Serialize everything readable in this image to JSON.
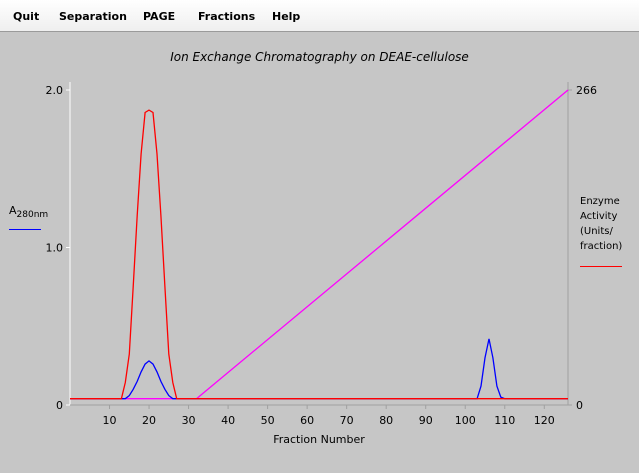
{
  "menu": {
    "quit": "Quit",
    "separation": "Separation",
    "page": "PAGE",
    "fractions": "Fractions",
    "help": "Help"
  },
  "chart_data": {
    "type": "line",
    "title": "Ion Exchange Chromatography on DEAE-cellulose",
    "xlabel": "Fraction Number",
    "xlim": [
      0,
      126
    ],
    "x_ticks": [
      10,
      20,
      30,
      40,
      50,
      60,
      70,
      80,
      90,
      100,
      110,
      120
    ],
    "y_left": {
      "label_main": "A",
      "label_sub": "280nm",
      "ylim": [
        0,
        2.0
      ],
      "ticks": [
        "0",
        "1.0",
        "2.0"
      ],
      "color": "#0000ff"
    },
    "y_right": {
      "label_lines": [
        "Enzyme",
        "Activity",
        "(Units/",
        "fraction)"
      ],
      "ylim": [
        0,
        266
      ],
      "ticks": [
        "0",
        "266"
      ],
      "color": "#ff0000"
    },
    "series": [
      {
        "axis": "left",
        "color": "#0000ff",
        "x": [
          0,
          14,
          15,
          16,
          17,
          18,
          19,
          20,
          21,
          22,
          23,
          24,
          25,
          26,
          27,
          103,
          104,
          105,
          106,
          107,
          108,
          109,
          110,
          126
        ],
        "y": [
          0.04,
          0.04,
          0.06,
          0.1,
          0.15,
          0.21,
          0.26,
          0.28,
          0.26,
          0.21,
          0.15,
          0.1,
          0.06,
          0.04,
          0.04,
          0.04,
          0.12,
          0.3,
          0.42,
          0.3,
          0.12,
          0.05,
          0.04,
          0.04
        ]
      },
      {
        "axis": "right",
        "color": "#ff0000",
        "x": [
          0,
          13,
          14,
          15,
          16,
          17,
          18,
          19,
          20,
          21,
          22,
          23,
          24,
          25,
          26,
          27,
          126
        ],
        "y": [
          5.3,
          5.3,
          19,
          43,
          100,
          160,
          212,
          247,
          249,
          247,
          212,
          160,
          100,
          43,
          19,
          5.3,
          5.3
        ]
      },
      {
        "axis": "right",
        "color": "#ff00ff",
        "x": [
          0,
          32,
          126
        ],
        "y": [
          5.3,
          5.3,
          266
        ]
      }
    ],
    "grid": false,
    "legend": "none"
  }
}
